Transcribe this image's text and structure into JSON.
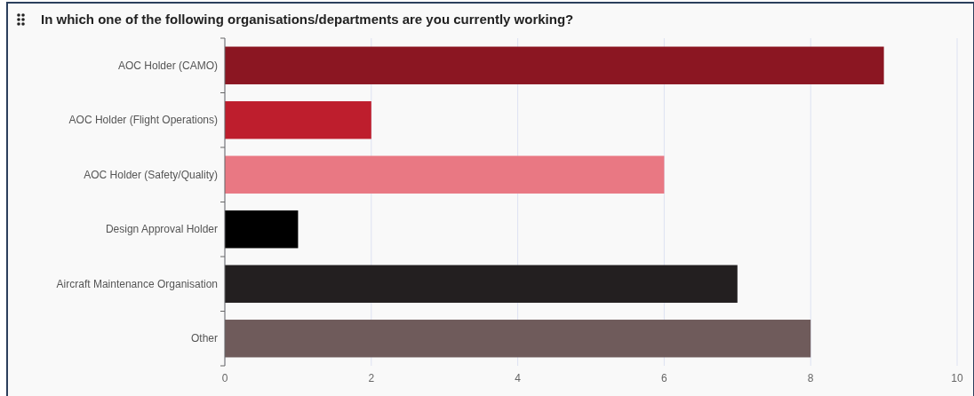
{
  "chart_data": {
    "type": "bar",
    "orientation": "horizontal",
    "title": "In which one of the following organisations/departments are you currently working?",
    "categories": [
      "AOC Holder (CAMO)",
      "AOC Holder (Flight Operations)",
      "AOC Holder (Safety/Quality)",
      "Design Approval Holder",
      "Aircraft Maintenance Organisation",
      "Other"
    ],
    "values": [
      9,
      2,
      6,
      1,
      7,
      8
    ],
    "colors": [
      "#8b1622",
      "#be1e2d",
      "#e97883",
      "#000000",
      "#231f20",
      "#6f5b5b"
    ],
    "xlim": [
      0,
      10
    ],
    "xticks": [
      0,
      2,
      4,
      6,
      8,
      10
    ],
    "grid": "x"
  }
}
